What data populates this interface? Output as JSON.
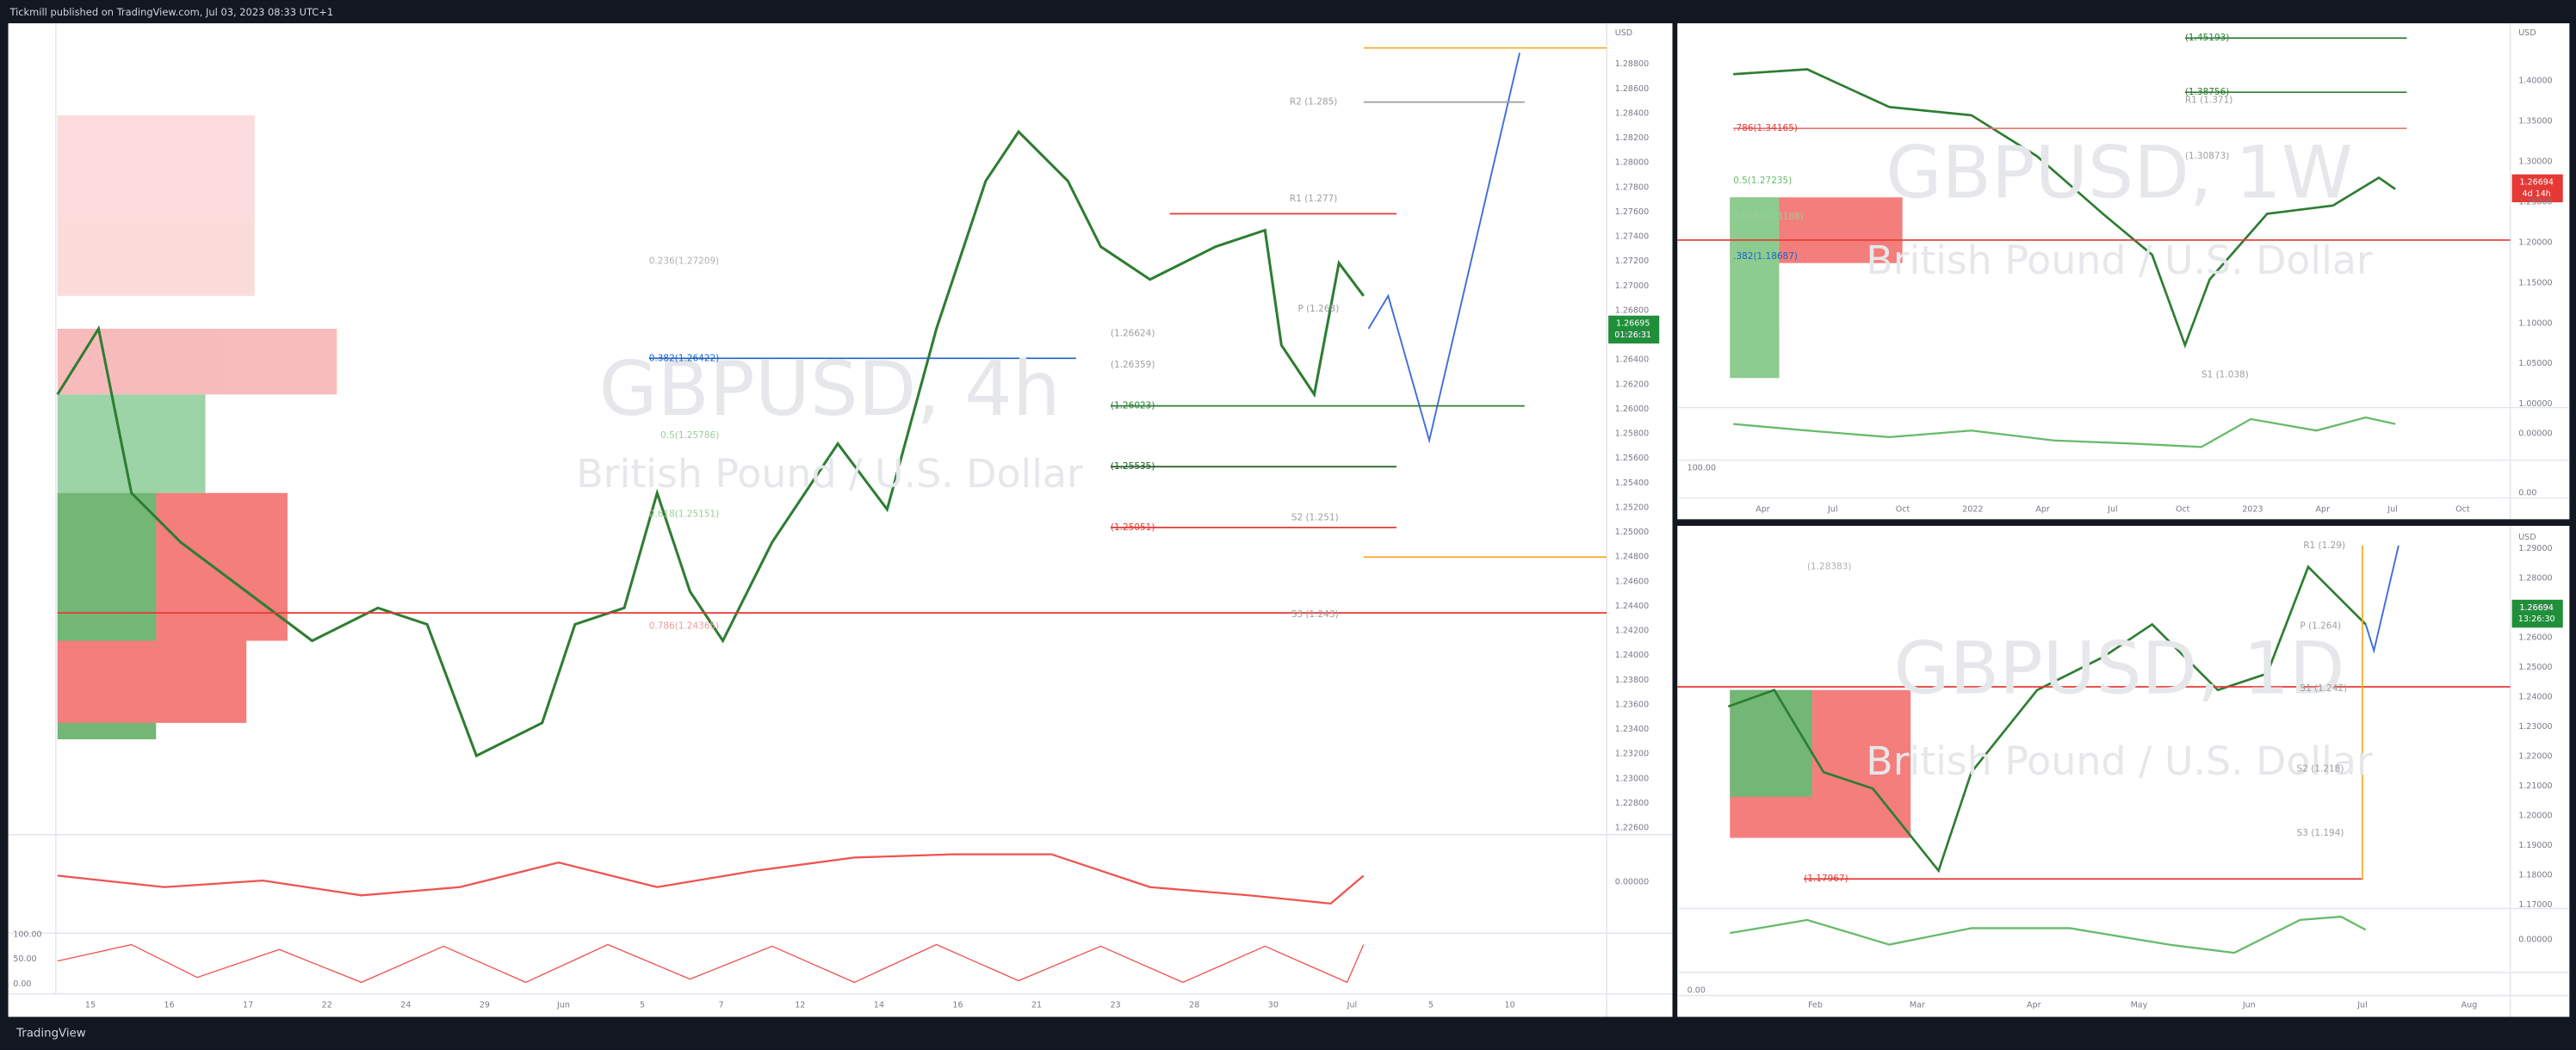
{
  "header": {
    "text": "Tickmill published on TradingView.com, Jul 03, 2023 08:33 UTC+1"
  },
  "footer": {
    "brand": "TradingView"
  },
  "panels": [
    {
      "symbol": "GBPUSD, 4h",
      "description": "British Pound / U.S. Dollar",
      "currency": "USD",
      "price_axis": [
        "1.28800",
        "1.28600",
        "1.28400",
        "1.28200",
        "1.28000",
        "1.27800",
        "1.27600",
        "1.27400",
        "1.27200",
        "1.27000",
        "1.26800",
        "1.26600",
        "1.26400",
        "1.26200",
        "1.26000",
        "1.25800",
        "1.25600",
        "1.25400",
        "1.25200",
        "1.25000",
        "1.24800",
        "1.24600",
        "1.24400",
        "1.24200",
        "1.24000",
        "1.23800",
        "1.23600",
        "1.23400",
        "1.23200",
        "1.23000",
        "1.22800",
        "1.22600"
      ],
      "last_price": "1.26695",
      "countdown": "01:26:31",
      "levels": [
        "R2 (1.285)",
        "R1 (1.277)",
        "P (1.268)",
        "(1.26624)",
        "(1.26359)",
        "(1.26023)",
        "(1.25535)",
        "(1.25051)",
        "S2 (1.251)",
        "S3 (1.243)",
        "0.236(1.27209)",
        "0.382(1.26422)",
        "0.5(1.25786)",
        "0.618(1.25151)",
        "0.786(1.24365)"
      ],
      "time_axis": [
        "15",
        "16",
        "17",
        "22",
        "24",
        "29",
        "Jun",
        "5",
        "7",
        "12",
        "14",
        "16",
        "21",
        "23",
        "28",
        "30",
        "Jul",
        "5",
        "10"
      ],
      "indicator_labels": [
        "0.00000",
        "100.00",
        "50.00",
        "0.00"
      ]
    },
    {
      "symbol": "GBPUSD, 1W",
      "description": "British Pound / U.S. Dollar",
      "currency": "USD",
      "price_axis": [
        "1.40000",
        "1.35000",
        "1.30000",
        "1.25000",
        "1.20000",
        "1.15000",
        "1.10000",
        "1.05000",
        "1.00000"
      ],
      "last_price": "1.26694",
      "countdown": "4d 14h",
      "levels": [
        "(1.45193)",
        "(1.38756)",
        "R1 (1.371)",
        ".786(1.34165)",
        "(1.30873)",
        "0.5(1.27235)",
        "0.618(1.23188)",
        ".382(1.18687)",
        "S1 (1.038)"
      ],
      "time_axis": [
        "Apr",
        "Jul",
        "Oct",
        "2022",
        "Apr",
        "Jul",
        "Oct",
        "2023",
        "Apr",
        "Jul",
        "Oct"
      ],
      "indicator_labels": [
        "0.00000",
        "100.00",
        "0.00"
      ]
    },
    {
      "symbol": "GBPUSD, 1D",
      "description": "British Pound / U.S. Dollar",
      "currency": "USD",
      "price_axis": [
        "1.29000",
        "1.28000",
        "1.27000",
        "1.26000",
        "1.25000",
        "1.24000",
        "1.23000",
        "1.22000",
        "1.21000",
        "1.20000",
        "1.19000",
        "1.18000",
        "1.17000"
      ],
      "last_price": "1.26694",
      "countdown": "13:26:30",
      "levels": [
        "R1 (1.29)",
        "(1.28383)",
        "P (1.264)",
        "S1 (1.242)",
        "S2 (1.218)",
        "S3 (1.194)",
        "(1.17967)"
      ],
      "time_axis": [
        "Feb",
        "Mar",
        "Apr",
        "May",
        "Jun",
        "Jul",
        "Aug"
      ],
      "indicator_labels": [
        "0.00000",
        "0.00"
      ]
    }
  ]
}
